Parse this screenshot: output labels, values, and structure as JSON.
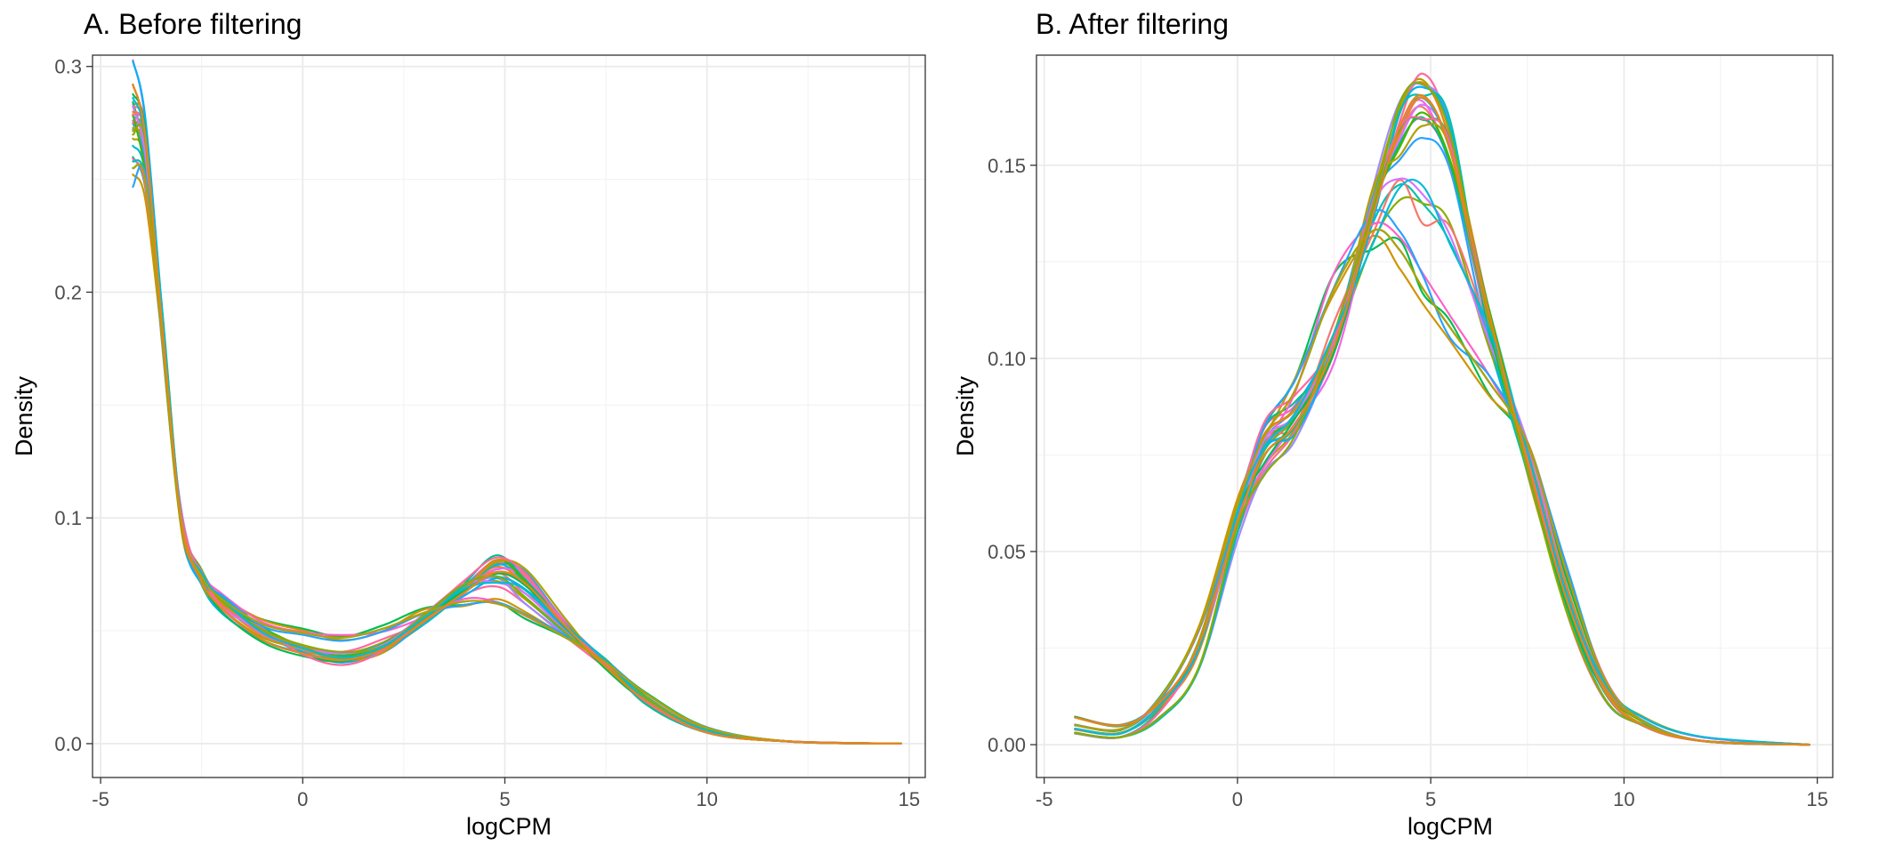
{
  "chart_data": [
    {
      "type": "line",
      "title": "A. Before filtering",
      "xlabel": "logCPM",
      "ylabel": "Density",
      "xlim": [
        -5.2,
        15.4
      ],
      "ylim": [
        -0.015,
        0.305
      ],
      "x_ticks": [
        -5,
        0,
        5,
        10,
        15
      ],
      "x_tick_labels": [
        "-5",
        "0",
        "5",
        "10",
        "15"
      ],
      "y_ticks": [
        0.0,
        0.1,
        0.2,
        0.3
      ],
      "y_tick_labels": [
        "0.0",
        "0.1",
        "0.2",
        "0.3"
      ],
      "grid": true,
      "legend": "none",
      "series_count": 30,
      "series_colors": [
        "#F8766D",
        "#E7851E",
        "#D09400",
        "#B2A100",
        "#89AC00",
        "#45B500",
        "#00BC51",
        "#00C087",
        "#00C0B2",
        "#00BCD6",
        "#00B3F2",
        "#29A3FF",
        "#9C8DFF",
        "#D277FF",
        "#F166E8",
        "#FF61C7",
        "#FF689F"
      ],
      "x": [
        -4.2,
        -3.9,
        -3.5,
        -3.0,
        -2.5,
        -2.0,
        -1.0,
        0.0,
        1.0,
        2.0,
        3.0,
        4.0,
        4.8,
        5.5,
        6.5,
        7.5,
        8.5,
        10.0,
        12.0,
        14.8
      ],
      "series": [
        {
          "values": [
            0.272,
            0.262,
            0.19,
            0.1,
            0.075,
            0.063,
            0.05,
            0.042,
            0.038,
            0.043,
            0.055,
            0.07,
            0.08,
            0.074,
            0.053,
            0.036,
            0.02,
            0.006,
            0.001,
            0.0
          ]
        },
        {
          "values": [
            0.292,
            0.27,
            0.19,
            0.098,
            0.072,
            0.06,
            0.046,
            0.04,
            0.037,
            0.042,
            0.054,
            0.067,
            0.076,
            0.071,
            0.052,
            0.034,
            0.019,
            0.005,
            0.001,
            0.0
          ]
        },
        {
          "values": [
            0.255,
            0.25,
            0.185,
            0.098,
            0.074,
            0.064,
            0.053,
            0.049,
            0.047,
            0.051,
            0.058,
            0.063,
            0.062,
            0.057,
            0.047,
            0.036,
            0.022,
            0.007,
            0.001,
            0.0
          ]
        },
        {
          "values": [
            0.276,
            0.265,
            0.188,
            0.099,
            0.073,
            0.062,
            0.049,
            0.041,
            0.036,
            0.042,
            0.055,
            0.07,
            0.081,
            0.075,
            0.054,
            0.035,
            0.018,
            0.005,
            0.001,
            0.0
          ]
        },
        {
          "values": [
            0.268,
            0.258,
            0.186,
            0.099,
            0.074,
            0.063,
            0.05,
            0.043,
            0.04,
            0.045,
            0.056,
            0.068,
            0.072,
            0.064,
            0.049,
            0.035,
            0.02,
            0.006,
            0.001,
            0.0
          ]
        },
        {
          "values": [
            0.278,
            0.266,
            0.189,
            0.1,
            0.074,
            0.062,
            0.049,
            0.042,
            0.039,
            0.044,
            0.056,
            0.069,
            0.074,
            0.068,
            0.051,
            0.036,
            0.02,
            0.006,
            0.001,
            0.0
          ]
        }
      ]
    },
    {
      "type": "line",
      "title": "B. After filtering",
      "xlabel": "logCPM",
      "ylabel": "Density",
      "xlim": [
        -5.2,
        15.4
      ],
      "ylim": [
        -0.0085,
        0.1785
      ],
      "x_ticks": [
        -5,
        0,
        5,
        10,
        15
      ],
      "x_tick_labels": [
        "-5",
        "0",
        "5",
        "10",
        "15"
      ],
      "y_ticks": [
        0.0,
        0.05,
        0.1,
        0.15
      ],
      "y_tick_labels": [
        "0.00",
        "0.05",
        "0.10",
        "0.15"
      ],
      "grid": true,
      "legend": "none",
      "series_count": 30,
      "series_colors": [
        "#F8766D",
        "#E7851E",
        "#D09400",
        "#B2A100",
        "#89AC00",
        "#45B500",
        "#00BC51",
        "#00C087",
        "#00C0B2",
        "#00BCD6",
        "#00B3F2",
        "#29A3FF",
        "#9C8DFF",
        "#D277FF",
        "#F166E8",
        "#FF61C7",
        "#FF689F"
      ],
      "x": [
        -4.2,
        -3.0,
        -2.0,
        -1.0,
        0.0,
        0.7,
        1.5,
        2.5,
        3.5,
        4.2,
        4.8,
        5.5,
        6.5,
        7.5,
        8.5,
        9.5,
        10.5,
        12.0,
        14.8
      ],
      "series": [
        {
          "values": [
            0.004,
            0.003,
            0.01,
            0.025,
            0.06,
            0.078,
            0.085,
            0.105,
            0.138,
            0.158,
            0.165,
            0.15,
            0.11,
            0.075,
            0.04,
            0.015,
            0.006,
            0.001,
            0.0
          ]
        },
        {
          "values": [
            0.007,
            0.005,
            0.011,
            0.026,
            0.058,
            0.075,
            0.083,
            0.103,
            0.137,
            0.16,
            0.168,
            0.154,
            0.112,
            0.073,
            0.038,
            0.014,
            0.005,
            0.001,
            0.0
          ]
        },
        {
          "values": [
            0.005,
            0.004,
            0.012,
            0.03,
            0.062,
            0.08,
            0.092,
            0.118,
            0.133,
            0.128,
            0.118,
            0.108,
            0.094,
            0.078,
            0.045,
            0.017,
            0.006,
            0.001,
            0.0
          ]
        },
        {
          "values": [
            0.003,
            0.002,
            0.009,
            0.026,
            0.061,
            0.082,
            0.088,
            0.106,
            0.14,
            0.156,
            0.162,
            0.15,
            0.108,
            0.074,
            0.039,
            0.014,
            0.005,
            0.001,
            0.0
          ]
        },
        {
          "values": [
            0.003,
            0.002,
            0.007,
            0.02,
            0.055,
            0.072,
            0.082,
            0.104,
            0.142,
            0.165,
            0.172,
            0.156,
            0.11,
            0.072,
            0.036,
            0.012,
            0.005,
            0.001,
            0.0
          ]
        },
        {
          "values": [
            0.004,
            0.003,
            0.01,
            0.025,
            0.06,
            0.077,
            0.086,
            0.106,
            0.135,
            0.145,
            0.14,
            0.13,
            0.106,
            0.076,
            0.041,
            0.016,
            0.007,
            0.002,
            0.0
          ]
        }
      ]
    }
  ]
}
